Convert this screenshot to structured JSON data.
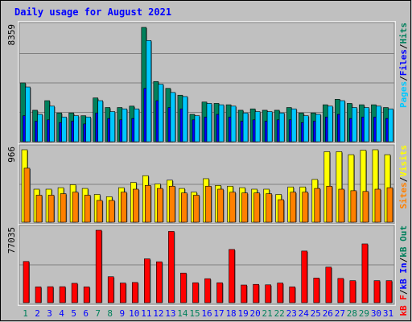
{
  "title": "Daily usage for August 2021",
  "colors": {
    "background": "#c0c0c0",
    "frame": "#ececec",
    "plot": "#c0c0c0",
    "title": "#0000ff",
    "hits": "#00805c",
    "files": "#0000ff",
    "pages": "#00c8ff",
    "visits": "#ffff00",
    "sites": "#ff8000",
    "kb_out": "#00805c",
    "kb_in": "#0000ff",
    "kb": "#ff0000",
    "weekend_label": "#00805c",
    "weekday_label": "#0000ff",
    "separator": "#000000"
  },
  "legend": {
    "top": {
      "hits": "Hits",
      "files": "Files",
      "pages": "Pages"
    },
    "middle": {
      "visits": "Visits",
      "sites": "Sites"
    },
    "bottom": {
      "kb_out": "kB Out",
      "kb_in": "kB In",
      "kb": "kB F"
    },
    "separator": "/"
  },
  "axis_max_labels": {
    "top": "8359",
    "middle": "966",
    "bottom": "77035"
  },
  "chart_data": {
    "type": "bar",
    "categories": [
      "1",
      "2",
      "3",
      "4",
      "5",
      "6",
      "7",
      "8",
      "9",
      "10",
      "11",
      "12",
      "13",
      "14",
      "15",
      "16",
      "17",
      "18",
      "19",
      "20",
      "21",
      "22",
      "23",
      "24",
      "25",
      "26",
      "27",
      "28",
      "29",
      "30",
      "31"
    ],
    "weekend_days": [
      "1",
      "7",
      "8",
      "14",
      "15",
      "21",
      "22",
      "28",
      "29"
    ],
    "panels": [
      {
        "name": "top",
        "ylim": [
          0,
          8359
        ],
        "series": [
          {
            "name": "Hits",
            "color_key": "hits",
            "values": [
              4300,
              2300,
              3000,
              2100,
              2100,
              1900,
              3200,
              2500,
              2500,
              2600,
              8359,
              4400,
              3900,
              3400,
              2000,
              2900,
              2800,
              2700,
              2300,
              2400,
              2300,
              2300,
              2500,
              2100,
              2100,
              2700,
              3100,
              2800,
              2700,
              2700,
              2500
            ]
          },
          {
            "name": "Files",
            "color_key": "files",
            "values": [
              1900,
              1500,
              1600,
              1400,
              1500,
              1300,
              2100,
              1700,
              1600,
              1700,
              3900,
              3000,
              2500,
              2400,
              1600,
              1800,
              2000,
              1800,
              1500,
              1600,
              1500,
              1600,
              1600,
              1400,
              1500,
              1800,
              2000,
              1700,
              1800,
              1800,
              1700
            ]
          },
          {
            "name": "Pages",
            "color_key": "pages",
            "values": [
              4000,
              2000,
              2600,
              1800,
              1900,
              1800,
              3000,
              2200,
              2400,
              2400,
              7400,
              4200,
              3600,
              3300,
              1900,
              2800,
              2700,
              2600,
              2100,
              2200,
              2200,
              2100,
              2400,
              1900,
              2000,
              2600,
              3000,
              2500,
              2500,
              2600,
              2400
            ]
          }
        ]
      },
      {
        "name": "middle",
        "ylim": [
          0,
          966
        ],
        "series": [
          {
            "name": "Visits",
            "color_key": "visits",
            "values": [
              966,
              440,
              440,
              460,
              500,
              450,
              370,
              340,
              460,
              530,
              620,
              510,
              560,
              450,
              400,
              580,
              490,
              480,
              460,
              440,
              440,
              370,
              470,
              470,
              570,
              940,
              940,
              900,
              960,
              966,
              900
            ]
          },
          {
            "name": "Sites",
            "color_key": "sites",
            "values": [
              720,
              360,
              360,
              380,
              400,
              360,
              290,
              290,
              400,
              440,
              490,
              450,
              480,
              390,
              360,
              480,
              440,
              400,
              390,
              390,
              380,
              300,
              400,
              400,
              450,
              480,
              440,
              420,
              410,
              440,
              460
            ]
          }
        ]
      },
      {
        "name": "bottom",
        "ylim": [
          0,
          77035
        ],
        "series": [
          {
            "name": "kB F",
            "color_key": "kb",
            "values": [
              43800,
              16800,
              17000,
              17000,
              20600,
              16800,
              77035,
              27600,
              20900,
              21500,
              46600,
              43500,
              75800,
              31500,
              21200,
              25500,
              21200,
              56600,
              18800,
              19500,
              19000,
              20900,
              16800,
              54900,
              26200,
              37800,
              25800,
              23400,
              62500,
              23400,
              23400
            ]
          }
        ]
      }
    ]
  }
}
